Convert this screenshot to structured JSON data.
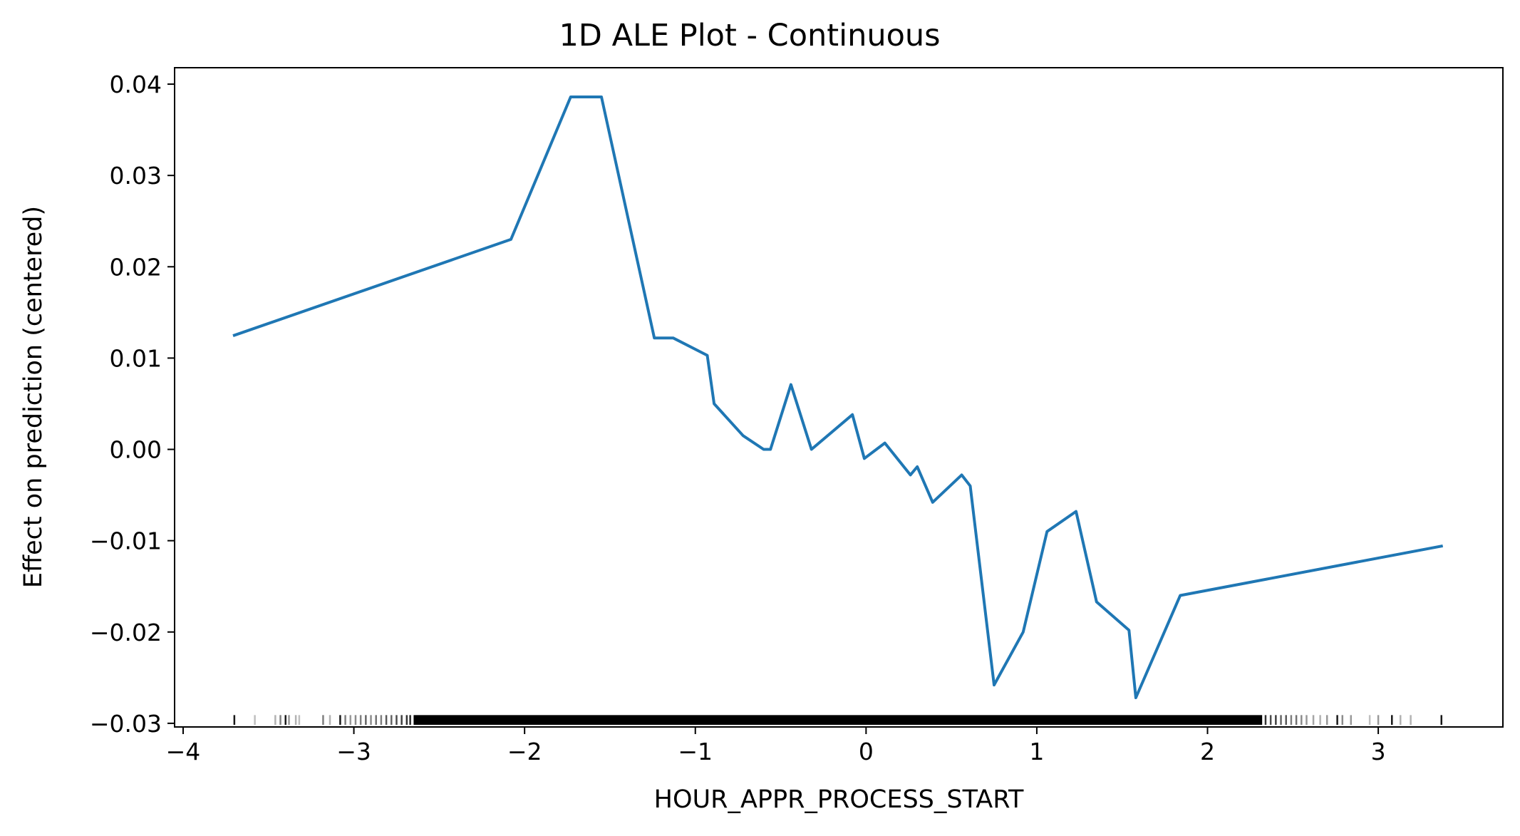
{
  "chart_data": {
    "type": "line",
    "title": "1D ALE Plot - Continuous",
    "xlabel": "HOUR_APPR_PROCESS_START",
    "ylabel": "Effect on prediction (centered)",
    "xlim": [
      -4.05,
      3.73
    ],
    "ylim": [
      -0.0304,
      0.0418
    ],
    "grid": false,
    "legend": "none",
    "line_color": "#1f77b4",
    "xticks": [
      {
        "value": -4,
        "label": "−4"
      },
      {
        "value": -3,
        "label": "−3"
      },
      {
        "value": -2,
        "label": "−2"
      },
      {
        "value": -1,
        "label": "−1"
      },
      {
        "value": 0,
        "label": "0"
      },
      {
        "value": 1,
        "label": "1"
      },
      {
        "value": 2,
        "label": "2"
      },
      {
        "value": 3,
        "label": "3"
      }
    ],
    "yticks": [
      {
        "value": 0.04,
        "label": "0.04"
      },
      {
        "value": 0.03,
        "label": "0.03"
      },
      {
        "value": 0.02,
        "label": "0.02"
      },
      {
        "value": 0.01,
        "label": "0.01"
      },
      {
        "value": 0.0,
        "label": "0.00"
      },
      {
        "value": -0.01,
        "label": "−0.01"
      },
      {
        "value": -0.02,
        "label": "−0.02"
      },
      {
        "value": -0.03,
        "label": "−0.03"
      }
    ],
    "series": [
      {
        "x": [
          -3.7,
          -2.08,
          -1.73,
          -1.55,
          -1.24,
          -1.13,
          -0.93,
          -0.89,
          -0.72,
          -0.6,
          -0.56,
          -0.44,
          -0.32,
          -0.08,
          -0.01,
          0.11,
          0.26,
          0.3,
          0.39,
          0.56,
          0.61,
          0.75,
          0.92,
          1.06,
          1.23,
          1.35,
          1.54,
          1.58,
          1.84,
          3.37
        ],
        "y": [
          0.0125,
          0.023,
          0.0386,
          0.0386,
          0.0122,
          0.0122,
          0.0103,
          0.005,
          0.0015,
          0.0,
          0.0,
          0.0071,
          0.0,
          0.0038,
          -0.001,
          0.0007,
          -0.0028,
          -0.0019,
          -0.0058,
          -0.0028,
          -0.004,
          -0.0258,
          -0.02,
          -0.009,
          -0.0068,
          -0.0167,
          -0.0198,
          -0.0272,
          -0.016,
          -0.0106
        ]
      }
    ],
    "rug": {
      "dense_range": [
        -2.65,
        2.32
      ],
      "ticks": [
        {
          "x": -3.7,
          "alpha": 0.9
        },
        {
          "x": -3.58,
          "alpha": 0.25
        },
        {
          "x": -3.46,
          "alpha": 0.3
        },
        {
          "x": -3.43,
          "alpha": 0.5
        },
        {
          "x": -3.4,
          "alpha": 0.9
        },
        {
          "x": -3.38,
          "alpha": 0.4
        },
        {
          "x": -3.34,
          "alpha": 0.3
        },
        {
          "x": -3.32,
          "alpha": 0.25
        },
        {
          "x": -3.18,
          "alpha": 0.5
        },
        {
          "x": -3.14,
          "alpha": 0.3
        },
        {
          "x": -3.08,
          "alpha": 0.9
        },
        {
          "x": -3.05,
          "alpha": 0.5
        },
        {
          "x": -3.02,
          "alpha": 0.4
        },
        {
          "x": -2.99,
          "alpha": 0.45
        },
        {
          "x": -2.96,
          "alpha": 0.5
        },
        {
          "x": -2.93,
          "alpha": 0.6
        },
        {
          "x": -2.9,
          "alpha": 0.45
        },
        {
          "x": -2.87,
          "alpha": 0.55
        },
        {
          "x": -2.84,
          "alpha": 0.5
        },
        {
          "x": -2.81,
          "alpha": 0.65
        },
        {
          "x": -2.78,
          "alpha": 0.6
        },
        {
          "x": -2.75,
          "alpha": 0.7
        },
        {
          "x": -2.72,
          "alpha": 0.75
        },
        {
          "x": -2.69,
          "alpha": 0.8
        },
        {
          "x": -2.67,
          "alpha": 0.85
        },
        {
          "x": 2.34,
          "alpha": 0.8
        },
        {
          "x": 2.37,
          "alpha": 0.7
        },
        {
          "x": 2.4,
          "alpha": 0.75
        },
        {
          "x": 2.43,
          "alpha": 0.6
        },
        {
          "x": 2.46,
          "alpha": 0.65
        },
        {
          "x": 2.49,
          "alpha": 0.5
        },
        {
          "x": 2.52,
          "alpha": 0.55
        },
        {
          "x": 2.55,
          "alpha": 0.45
        },
        {
          "x": 2.58,
          "alpha": 0.4
        },
        {
          "x": 2.62,
          "alpha": 0.35
        },
        {
          "x": 2.66,
          "alpha": 0.3
        },
        {
          "x": 2.7,
          "alpha": 0.4
        },
        {
          "x": 2.76,
          "alpha": 0.9
        },
        {
          "x": 2.79,
          "alpha": 0.45
        },
        {
          "x": 2.84,
          "alpha": 0.4
        },
        {
          "x": 2.95,
          "alpha": 0.25
        },
        {
          "x": 3.0,
          "alpha": 0.4
        },
        {
          "x": 3.08,
          "alpha": 0.9
        },
        {
          "x": 3.13,
          "alpha": 0.3
        },
        {
          "x": 3.19,
          "alpha": 0.3
        },
        {
          "x": 3.37,
          "alpha": 0.9
        }
      ]
    }
  }
}
